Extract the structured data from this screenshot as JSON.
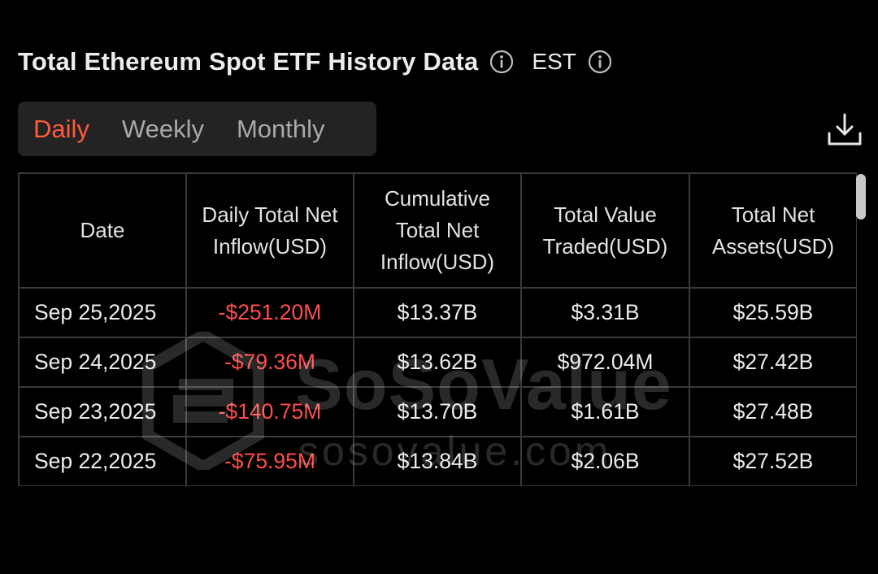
{
  "header": {
    "title": "Total Ethereum Spot ETF History Data",
    "timezone": "EST"
  },
  "tabs": [
    {
      "label": "Daily",
      "active": true
    },
    {
      "label": "Weekly",
      "active": false
    },
    {
      "label": "Monthly",
      "active": false
    }
  ],
  "colors": {
    "accent": "#ff5b3c",
    "negative": "#ff4d4d",
    "background": "#000000",
    "tab_background": "#232323",
    "grid": "#3a3a3a"
  },
  "icons": {
    "title_info": "info-icon",
    "timezone_info": "info-icon",
    "download": "download-icon"
  },
  "table": {
    "columns": [
      "Date",
      "Daily Total Net Inflow(USD)",
      "Cumulative Total Net Inflow(USD)",
      "Total Value Traded(USD)",
      "Total Net Assets(USD)"
    ],
    "rows": [
      {
        "date": "Sep 25,2025",
        "daily_inflow": "-$251.20M",
        "cumulative_inflow": "$13.37B",
        "value_traded": "$3.31B",
        "net_assets": "$25.59B"
      },
      {
        "date": "Sep 24,2025",
        "daily_inflow": "-$79.36M",
        "cumulative_inflow": "$13.62B",
        "value_traded": "$972.04M",
        "net_assets": "$27.42B"
      },
      {
        "date": "Sep 23,2025",
        "daily_inflow": "-$140.75M",
        "cumulative_inflow": "$13.70B",
        "value_traded": "$1.61B",
        "net_assets": "$27.48B"
      },
      {
        "date": "Sep 22,2025",
        "daily_inflow": "-$75.95M",
        "cumulative_inflow": "$13.84B",
        "value_traded": "$2.06B",
        "net_assets": "$27.52B"
      }
    ]
  },
  "watermark": {
    "brand": "SoSoValue",
    "url": "sosovalue.com"
  }
}
